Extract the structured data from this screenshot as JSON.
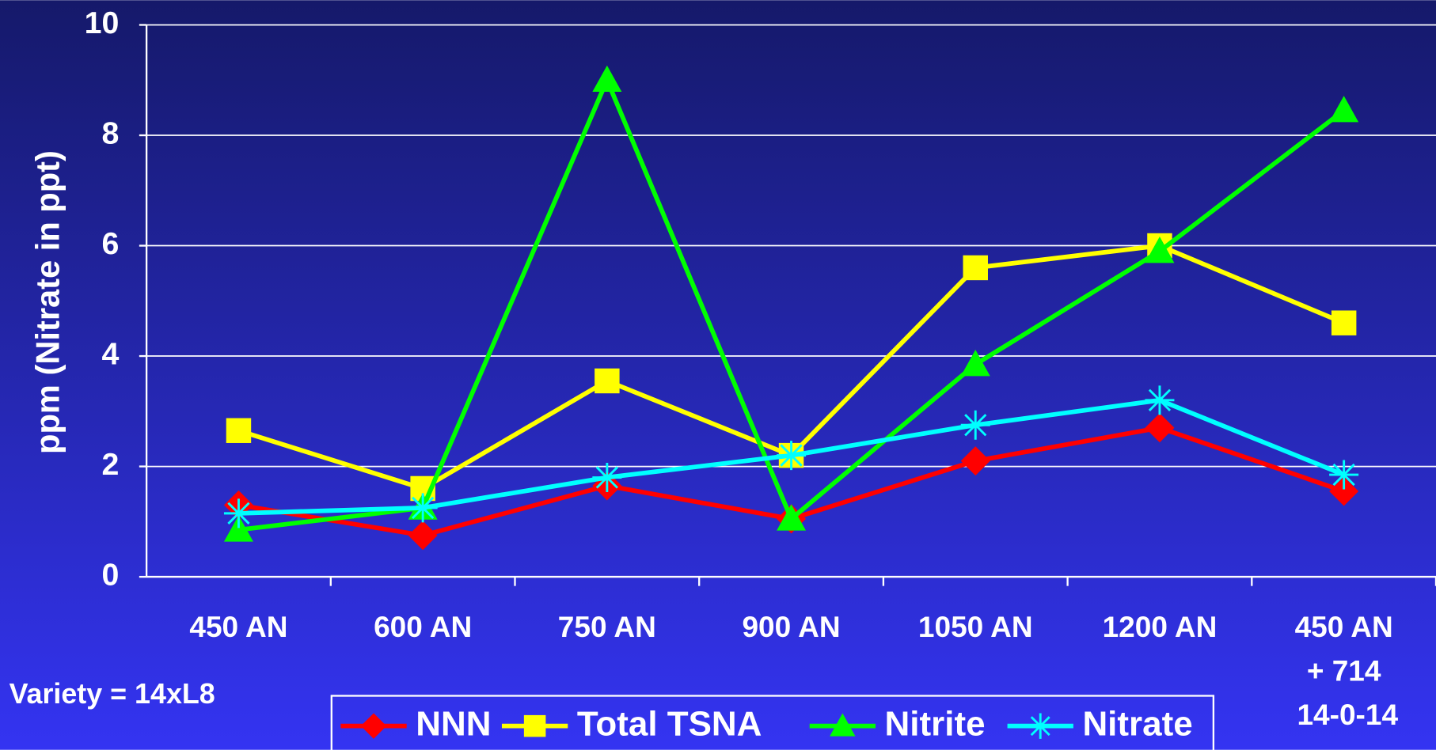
{
  "chart_data": {
    "type": "line",
    "y_axis_label": "ppm (Nitrate in ppt)",
    "annotation": "Variety = 14xL8",
    "categories": [
      "450 AN",
      "600 AN",
      "750 AN",
      "900 AN",
      "1050 AN",
      "1200 AN",
      "450 AN\n+ 714\n14-0-14"
    ],
    "ylim": [
      0,
      10
    ],
    "yticks": [
      0,
      2,
      4,
      6,
      8,
      10
    ],
    "grid": true,
    "legend": "bottom",
    "series": [
      {
        "name": "NNN",
        "color": "#ff0000",
        "marker": "diamond",
        "values": [
          1.3,
          0.75,
          1.65,
          1.05,
          2.1,
          2.7,
          1.55
        ]
      },
      {
        "name": "Total TSNA",
        "color": "#ffff00",
        "marker": "square",
        "values": [
          2.65,
          1.6,
          3.55,
          2.2,
          5.6,
          6.0,
          4.6
        ]
      },
      {
        "name": "Nitrite",
        "color": "#00ff00",
        "marker": "triangle",
        "values": [
          0.85,
          1.25,
          9.0,
          1.05,
          3.85,
          5.9,
          8.45
        ]
      },
      {
        "name": "Nitrate",
        "color": "#00ffff",
        "marker": "asterisk",
        "values": [
          1.15,
          1.25,
          1.8,
          2.2,
          2.75,
          3.2,
          1.85
        ]
      }
    ]
  }
}
